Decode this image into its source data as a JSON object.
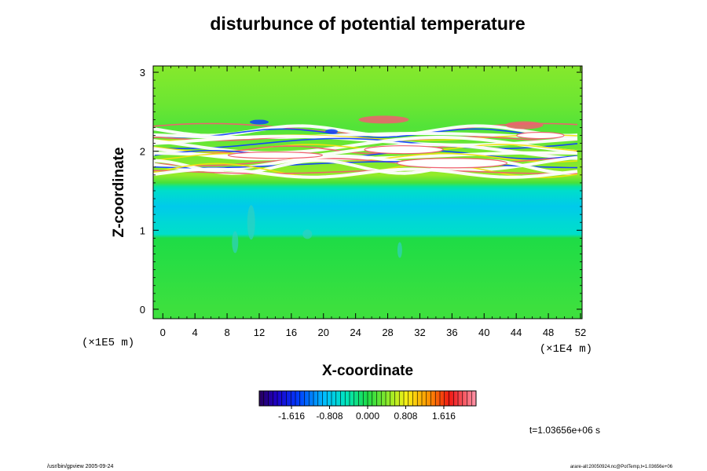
{
  "chart_data": {
    "type": "heatmap",
    "title": "disturbunce of potential temperature",
    "xlabel": "X-coordinate",
    "ylabel": "Z-coordinate",
    "x_unit": "(×1E4 m)",
    "y_unit": "(×1E5 m)",
    "xlim": [
      -1.2,
      52.2
    ],
    "ylim": [
      -0.12,
      3.08
    ],
    "x_ticks": [
      0,
      4,
      8,
      12,
      16,
      20,
      24,
      28,
      32,
      36,
      40,
      44,
      48,
      52
    ],
    "y_ticks": [
      0,
      1,
      2,
      3
    ],
    "colorbar": {
      "tick_labels": [
        "-1.616",
        "-0.808",
        "0.000",
        "0.808",
        "1.616"
      ],
      "tick_values": [
        -1.616,
        -0.808,
        0.0,
        0.808,
        1.616
      ],
      "range": [
        -2.3,
        2.3
      ]
    },
    "time_label": "t=1.03656e+06 s",
    "z_profile": [
      {
        "z": -0.12,
        "value": 0.12
      },
      {
        "z": 0.0,
        "value": 0.12
      },
      {
        "z": 0.5,
        "value": 0.05
      },
      {
        "z": 0.9,
        "value": 0.0
      },
      {
        "z": 0.95,
        "value": -0.55
      },
      {
        "z": 1.1,
        "value": -0.62
      },
      {
        "z": 1.3,
        "value": -0.78
      },
      {
        "z": 1.5,
        "value": -0.55
      },
      {
        "z": 1.55,
        "value": -0.35
      },
      {
        "z": 1.6,
        "value": 0.15
      },
      {
        "z": 1.7,
        "value": 0.45
      },
      {
        "z": 2.3,
        "value": 0.2
      },
      {
        "z": 2.6,
        "value": 0.3
      },
      {
        "z": 3.08,
        "value": 0.4
      }
    ],
    "banded_region_z": [
      1.7,
      2.3
    ]
  },
  "footer": {
    "left": "/usr/bin/gpview 2005-09-24",
    "right": "arare-all:20050924.nc@PotTemp,t=1.03656e+06"
  },
  "colors": {
    "negative_extreme": "#3a0070",
    "negative": "#1040ff",
    "zero": "#20d060",
    "positive": "#f0e010",
    "positive_extreme": "#f06070",
    "beyond_range": "#ffffff"
  }
}
